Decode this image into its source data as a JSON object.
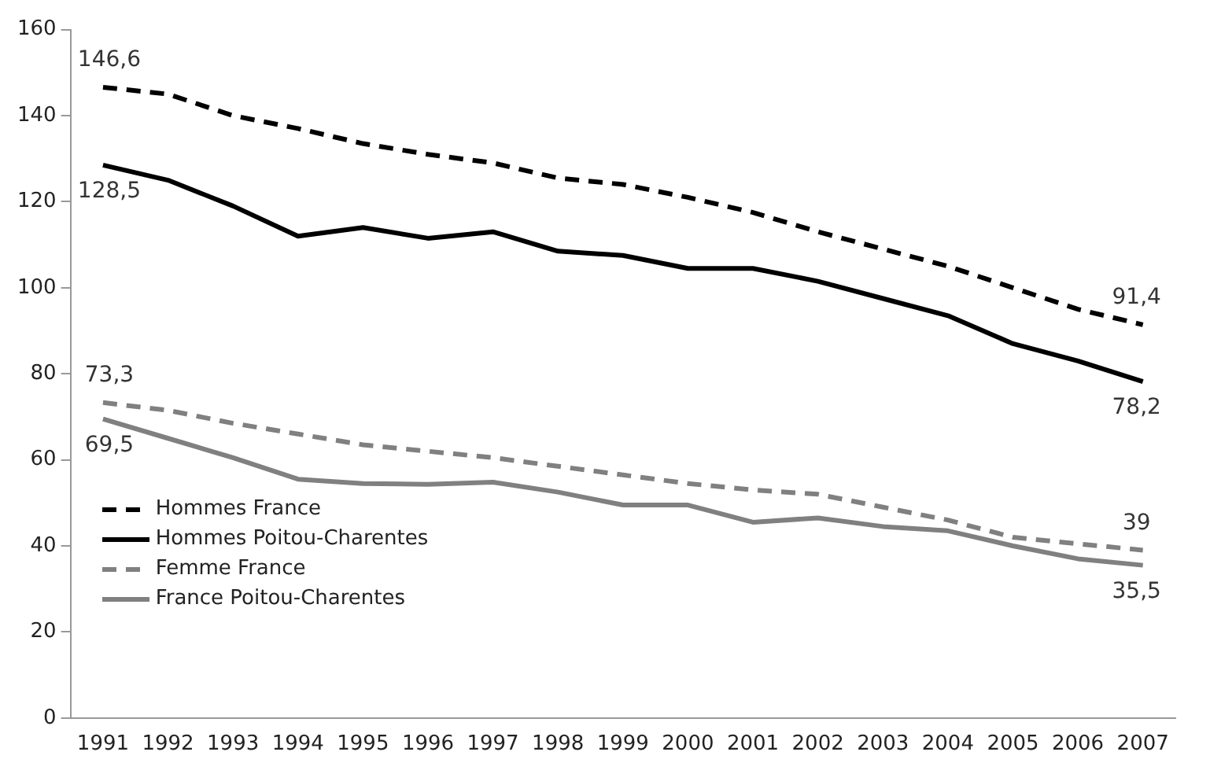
{
  "chart_data": {
    "type": "line",
    "categories": [
      "1991",
      "1992",
      "1993",
      "1994",
      "1995",
      "1996",
      "1997",
      "1998",
      "1999",
      "2000",
      "2001",
      "2002",
      "2003",
      "2004",
      "2005",
      "2006",
      "2007"
    ],
    "ylim": [
      0,
      160
    ],
    "yticks": [
      0,
      20,
      40,
      60,
      80,
      100,
      120,
      140,
      160
    ],
    "grid": false,
    "legend": "bottom left",
    "marker": "none",
    "series": [
      {
        "name": "Hommes France",
        "color": "#000000",
        "line_style": "dashed",
        "values": [
          146.6,
          145,
          140,
          137,
          133.5,
          131,
          129,
          125.5,
          124,
          121,
          117.5,
          113,
          109,
          105,
          100,
          95,
          91.4
        ],
        "value_labels": [
          "146,6",
          null,
          null,
          null,
          null,
          null,
          null,
          null,
          null,
          null,
          null,
          null,
          null,
          null,
          null,
          null,
          "91,4"
        ]
      },
      {
        "name": "Hommes Poitou-Charentes",
        "color": "#000000",
        "line_style": "solid",
        "values": [
          128.5,
          125,
          119,
          112,
          114,
          111.5,
          113,
          108.5,
          107.5,
          104.5,
          104.5,
          101.5,
          97.5,
          93.5,
          87,
          83,
          78.2
        ],
        "value_labels": [
          "128,5",
          null,
          null,
          null,
          null,
          null,
          null,
          null,
          null,
          null,
          null,
          null,
          null,
          null,
          null,
          null,
          "78,2"
        ]
      },
      {
        "name": "Femme France",
        "color": "#808080",
        "line_style": "dashed",
        "values": [
          73.3,
          71.5,
          68.5,
          66,
          63.5,
          62,
          60.5,
          58.5,
          56.5,
          54.5,
          53,
          52,
          49,
          46,
          42,
          40.5,
          39
        ],
        "value_labels": [
          "73,3",
          null,
          null,
          null,
          null,
          null,
          null,
          null,
          null,
          null,
          null,
          null,
          null,
          null,
          null,
          null,
          "39"
        ]
      },
      {
        "name": "France Poitou-Charentes",
        "color": "#808080",
        "line_style": "solid",
        "values": [
          69.5,
          65,
          60.5,
          55.5,
          54.5,
          54.3,
          54.8,
          52.5,
          49.5,
          49.5,
          45.5,
          46.5,
          44.5,
          43.5,
          40,
          37,
          35.5
        ],
        "value_labels": [
          "69,5",
          null,
          null,
          null,
          null,
          null,
          null,
          null,
          null,
          null,
          null,
          null,
          null,
          null,
          null,
          null,
          "35,5"
        ]
      }
    ]
  }
}
